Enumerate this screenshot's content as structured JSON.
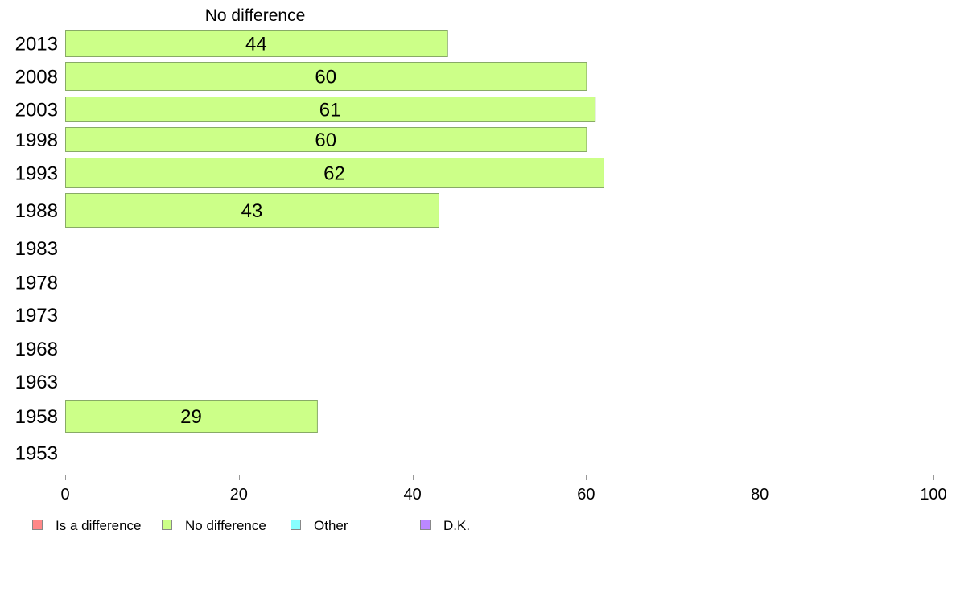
{
  "chart_data": {
    "type": "bar",
    "orientation": "horizontal",
    "top_label": "No difference",
    "categories": [
      "2013",
      "2008",
      "2003",
      "1998",
      "1993",
      "1988",
      "1983",
      "1978",
      "1973",
      "1968",
      "1963",
      "1958",
      "1953"
    ],
    "series": [
      {
        "name": "No difference",
        "color": "#ccff88",
        "values": [
          44,
          60,
          61,
          60,
          62,
          43,
          null,
          null,
          null,
          null,
          null,
          29,
          null
        ]
      }
    ],
    "xlim": [
      0,
      100
    ],
    "xticks": [
      0,
      20,
      40,
      60,
      80,
      100
    ],
    "legend": {
      "position": "bottom-left",
      "items": [
        {
          "label": "Is a difference",
          "color": "#ff8888"
        },
        {
          "label": "No difference",
          "color": "#ccff88"
        },
        {
          "label": "Other",
          "color": "#88ffff"
        },
        {
          "label": "D.K.",
          "color": "#bb88ff"
        }
      ]
    },
    "grid": false
  }
}
